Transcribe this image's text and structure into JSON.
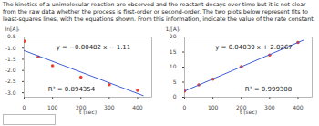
{
  "header": {
    "text": "The kinetics of a unimolecular reaction are observed and the reactant decays over time but it is not clear from the raw data whether the process is first-order or second-order. The two plots below represent fits to least-squares lines, with the equations shown. From this information, indicate the value of the rate constant."
  },
  "chart_data": [
    {
      "type": "scatter",
      "y_label": "ln[A]ₜ",
      "x_label": "t (sec)",
      "annotations": [
        "y = −0.00482 x − 1.11",
        "R² = 0.894354"
      ],
      "series": [
        {
          "type": "scatter",
          "color": "#e8412f",
          "marker": "circle",
          "x": [
            0,
            50,
            100,
            200,
            300,
            400
          ],
          "values": [
            -0.69,
            -1.39,
            -1.79,
            -2.3,
            -2.64,
            -2.89
          ]
        },
        {
          "type": "line",
          "color": "#3f5fd6",
          "x": [
            0,
            420
          ],
          "values": [
            -1.11,
            -3.13
          ]
        }
      ],
      "xlim": [
        0,
        450
      ],
      "xticks": [
        0,
        100,
        200,
        300,
        400
      ],
      "ylim": [
        -3.2,
        -0.5
      ],
      "yticks": [
        {
          "value": -0.5,
          "label": "-0.5"
        },
        {
          "value": -1,
          "label": "-1.0"
        },
        {
          "value": -1.5,
          "label": "-1.5"
        },
        {
          "value": -2,
          "label": "-2.0"
        },
        {
          "value": -2.5,
          "label": "-2.5"
        },
        {
          "value": -3,
          "label": "-3.0"
        }
      ]
    },
    {
      "type": "scatter",
      "y_label": "1/[A]ₜ",
      "x_label": "t (sec)",
      "annotations": [
        "y = 0.04039 x + 2.0267",
        "R² = 0.999308"
      ],
      "series": [
        {
          "type": "scatter",
          "color": "#e8412f",
          "marker": "circle",
          "x": [
            0,
            50,
            100,
            200,
            300,
            400
          ],
          "values": [
            2.05,
            4.1,
            6.0,
            10.1,
            14.0,
            18.2
          ]
        },
        {
          "type": "line",
          "color": "#3f5fd6",
          "x": [
            0,
            420
          ],
          "values": [
            2.03,
            18.99
          ]
        }
      ],
      "xlim": [
        0,
        450
      ],
      "xticks": [
        0,
        100,
        200,
        300,
        400
      ],
      "ylim": [
        0,
        20
      ],
      "yticks": [
        0,
        5,
        10,
        15,
        20
      ]
    }
  ]
}
